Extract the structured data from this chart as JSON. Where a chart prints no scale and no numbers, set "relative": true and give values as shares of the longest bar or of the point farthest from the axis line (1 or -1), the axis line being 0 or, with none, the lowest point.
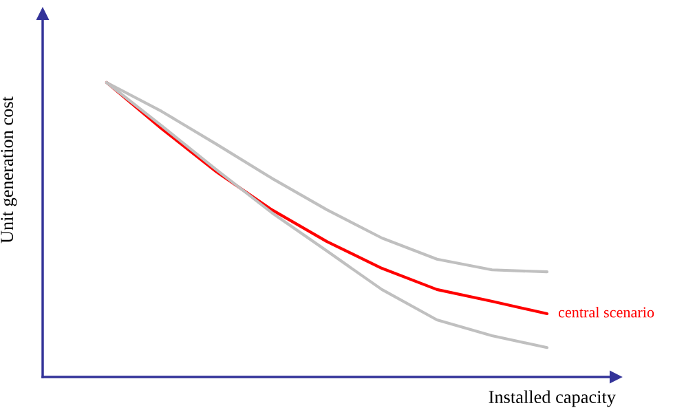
{
  "chart_data": {
    "type": "line",
    "relative": true,
    "xlabel": "Installed capacity",
    "ylabel": "Unit generation cost",
    "categories": [
      null,
      null,
      null,
      null,
      null,
      null,
      null,
      null,
      null
    ],
    "series": [
      {
        "color": "#c0c0c0",
        "values": [
          1,
          0.902,
          0.79,
          0.675,
          0.568,
          0.472,
          0.4,
          0.364,
          0.357
        ]
      },
      {
        "name": "central scenario",
        "color": "#ff0000",
        "values": [
          1,
          0.843,
          0.696,
          0.568,
          0.46,
          0.369,
          0.297,
          0.257,
          0.215
        ]
      },
      {
        "color": "#c0c0c0",
        "values": [
          1,
          0.853,
          0.703,
          0.558,
          0.428,
          0.297,
          0.194,
          0.14,
          0.1
        ]
      }
    ],
    "tick_labels": false,
    "legend": false,
    "marker": "none",
    "line_style": "solid"
  }
}
